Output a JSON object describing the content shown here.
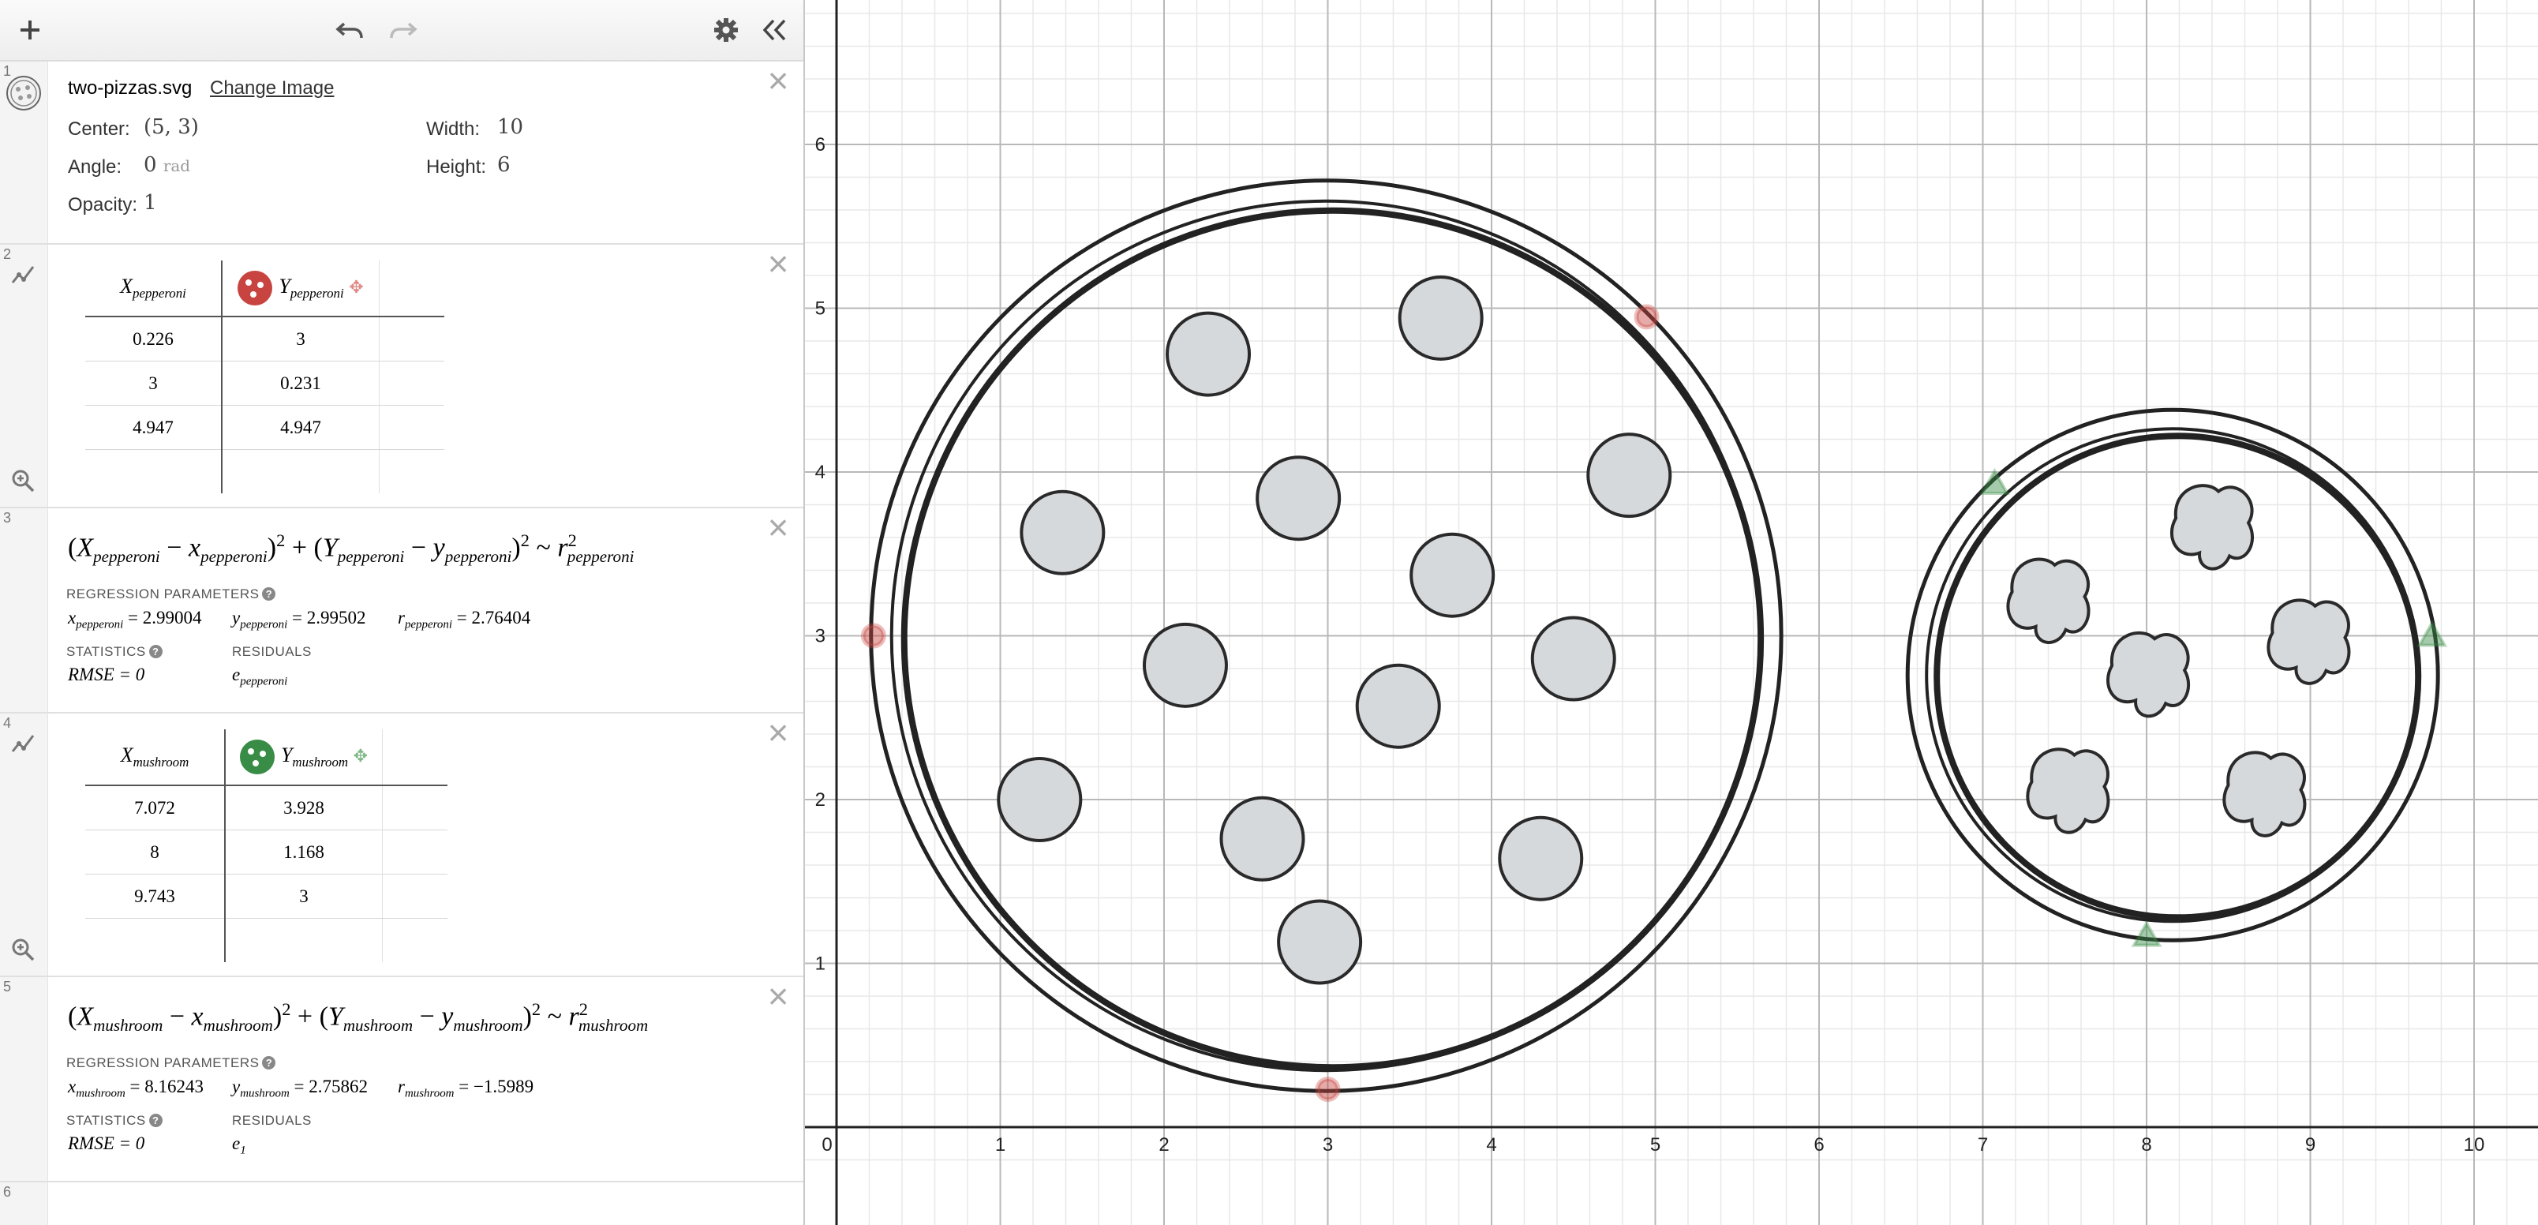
{
  "toolbar": {
    "add_icon": "plus-icon",
    "undo_icon": "undo-icon",
    "redo_icon": "redo-icon",
    "settings_icon": "gear-icon",
    "collapse_icon": "double-chevron-left-icon"
  },
  "expressions": {
    "image": {
      "index": "1",
      "filename": "two-pizzas.svg",
      "change_label": "Change Image",
      "center_label": "Center:",
      "center_value": "(5, 3)",
      "width_label": "Width:",
      "width_value": "10",
      "angle_label": "Angle:",
      "angle_value": "0",
      "angle_unit": "rad",
      "height_label": "Height:",
      "height_value": "6",
      "opacity_label": "Opacity:",
      "opacity_value": "1"
    },
    "table_pepperoni": {
      "index": "2",
      "x_header": "X",
      "x_sub": "pepperoni",
      "y_header": "Y",
      "y_sub": "pepperoni",
      "color": "#c74440",
      "rows": [
        [
          "0.226",
          "3"
        ],
        [
          "3",
          "0.231"
        ],
        [
          "4.947",
          "4.947"
        ]
      ]
    },
    "regression_pepperoni": {
      "index": "3",
      "params_title": "REGRESSION PARAMETERS",
      "params": [
        {
          "name": "x",
          "sub": "pepperoni",
          "value": "= 2.99004"
        },
        {
          "name": "y",
          "sub": "pepperoni",
          "value": "= 2.99502"
        },
        {
          "name": "r",
          "sub": "pepperoni",
          "value": "= 2.76404"
        }
      ],
      "stats_title": "STATISTICS",
      "rmse": "RMSE = 0",
      "residuals_title": "RESIDUALS",
      "residual_name": "e",
      "residual_sub": "pepperoni"
    },
    "table_mushroom": {
      "index": "4",
      "x_header": "X",
      "x_sub": "mushroom",
      "y_header": "Y",
      "y_sub": "mushroom",
      "color": "#388c46",
      "rows": [
        [
          "7.072",
          "3.928"
        ],
        [
          "8",
          "1.168"
        ],
        [
          "9.743",
          "3"
        ]
      ]
    },
    "regression_mushroom": {
      "index": "5",
      "params_title": "REGRESSION PARAMETERS",
      "params": [
        {
          "name": "x",
          "sub": "mushroom",
          "value": "= 8.16243"
        },
        {
          "name": "y",
          "sub": "mushroom",
          "value": "= 2.75862"
        },
        {
          "name": "r",
          "sub": "mushroom",
          "value": "= −1.5989"
        }
      ],
      "stats_title": "STATISTICS",
      "rmse": "RMSE = 0",
      "residuals_title": "RESIDUALS",
      "residual_name": "e",
      "residual_sub": "1"
    },
    "empty": {
      "index": "6"
    }
  },
  "graph": {
    "x_ticks": [
      "0",
      "1",
      "2",
      "3",
      "4",
      "5",
      "6",
      "7",
      "8",
      "9",
      "10"
    ],
    "y_ticks": [
      "1",
      "2",
      "3",
      "4",
      "5",
      "6"
    ],
    "pepperoni_points": [
      [
        0.226,
        3
      ],
      [
        3,
        0.231
      ],
      [
        4.947,
        4.947
      ]
    ],
    "mushroom_points": [
      [
        7.072,
        3.928
      ],
      [
        8,
        1.168
      ],
      [
        9.743,
        3
      ]
    ],
    "pepperoni_color": "#c74440",
    "mushroom_color": "#388c46",
    "pepperoni_toppings": [
      [
        2.27,
        4.72
      ],
      [
        3.69,
        4.94
      ],
      [
        4.84,
        3.98
      ],
      [
        1.38,
        3.63
      ],
      [
        2.82,
        3.84
      ],
      [
        3.76,
        3.37
      ],
      [
        2.13,
        2.82
      ],
      [
        4.5,
        2.86
      ],
      [
        3.43,
        2.57
      ],
      [
        1.24,
        2.0
      ],
      [
        2.6,
        1.76
      ],
      [
        4.3,
        1.64
      ],
      [
        2.95,
        1.13
      ]
    ],
    "mushroom_toppings": [
      [
        8.41,
        3.67
      ],
      [
        7.41,
        3.22
      ],
      [
        9.0,
        2.97
      ],
      [
        8.02,
        2.77
      ],
      [
        7.53,
        2.06
      ],
      [
        8.73,
        2.04
      ]
    ]
  }
}
